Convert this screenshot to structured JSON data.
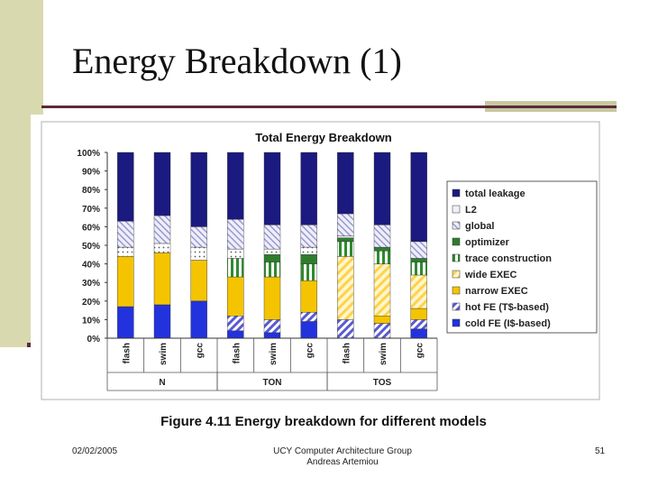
{
  "slide": {
    "title": "Energy Breakdown (1)",
    "footer_date": "02/02/2005",
    "footer_org": "UCY Computer Architecture Group",
    "footer_author": "Andreas Artemiou",
    "page_number": "51",
    "caption": "Figure 4.11 Energy breakdown for different models"
  },
  "colors": {
    "title_rule": "#5c2a3a",
    "left_strip": "#d9d9b0",
    "total_leakage": "#1a1a80",
    "l2": "#f0f0f8",
    "global": "#c8c8e8",
    "optimizer": "#2e7d2e",
    "trace_construction": "#2e8b2e",
    "wide_exec": "#ffd24a",
    "narrow_exec": "#f5c400",
    "hot_fe": "#5a5ad0",
    "cold_fe": "#2233dd"
  },
  "chart_data": {
    "type": "bar",
    "stacked": true,
    "title": "Total Energy Breakdown",
    "categories": [
      "flash",
      "swim",
      "gcc",
      "flash",
      "swim",
      "gcc",
      "flash",
      "swim",
      "gcc"
    ],
    "groups": [
      {
        "name": "N",
        "members": [
          0,
          1,
          2
        ]
      },
      {
        "name": "TON",
        "members": [
          3,
          4,
          5
        ]
      },
      {
        "name": "TOS",
        "members": [
          6,
          7,
          8
        ]
      }
    ],
    "ylim": [
      0,
      100
    ],
    "yticks": [
      "0%",
      "10%",
      "20%",
      "30%",
      "40%",
      "50%",
      "60%",
      "70%",
      "80%",
      "90%",
      "100%"
    ],
    "grid": false,
    "legend_position": "right",
    "series": [
      {
        "name": "cold FE (I$-based)",
        "key": "cold_fe",
        "pattern": "solid",
        "values": [
          17,
          18,
          20,
          4,
          3,
          9,
          0,
          0,
          5
        ]
      },
      {
        "name": "hot FE (T$-based)",
        "key": "hot_fe",
        "pattern": "hatch",
        "values": [
          0,
          0,
          0,
          8,
          7,
          5,
          10,
          8,
          5
        ]
      },
      {
        "name": "narrow EXEC",
        "key": "narrow_exec",
        "pattern": "solid",
        "values": [
          27,
          28,
          22,
          21,
          23,
          17,
          0,
          4,
          6
        ]
      },
      {
        "name": "wide EXEC",
        "key": "wide_exec",
        "pattern": "hatch",
        "values": [
          0,
          0,
          0,
          0,
          0,
          0,
          34,
          28,
          18
        ]
      },
      {
        "name": "trace construction",
        "key": "trace_construction",
        "pattern": "stripe",
        "values": [
          0,
          0,
          0,
          10,
          8,
          9,
          8,
          7,
          7
        ]
      },
      {
        "name": "optimizer",
        "key": "optimizer",
        "pattern": "solid",
        "values": [
          0,
          0,
          0,
          0,
          4,
          5,
          2,
          2,
          2
        ]
      },
      {
        "name": "global",
        "key": "global",
        "pattern": "dots",
        "values": [
          5,
          5,
          7,
          5,
          3,
          4,
          0,
          0,
          0
        ]
      },
      {
        "name": "L2",
        "key": "l2",
        "pattern": "solid",
        "values": [
          0,
          0,
          0,
          0,
          0,
          0,
          1,
          0,
          0
        ]
      },
      {
        "name": "global",
        "key": "global",
        "pattern": "hatch-light",
        "values": [
          14,
          15,
          11,
          16,
          13,
          12,
          12,
          12,
          9
        ]
      },
      {
        "name": "total leakage",
        "key": "total_leakage",
        "pattern": "solid",
        "values": [
          37,
          34,
          40,
          36,
          39,
          39,
          33,
          39,
          48
        ]
      }
    ],
    "legend": [
      {
        "name": "total leakage",
        "key": "total_leakage",
        "pattern": "solid"
      },
      {
        "name": "L2",
        "key": "l2",
        "pattern": "solid"
      },
      {
        "name": "global",
        "key": "global",
        "pattern": "hatch-light"
      },
      {
        "name": "optimizer",
        "key": "optimizer",
        "pattern": "solid"
      },
      {
        "name": "trace construction",
        "key": "trace_construction",
        "pattern": "stripe"
      },
      {
        "name": "wide EXEC",
        "key": "wide_exec",
        "pattern": "hatch"
      },
      {
        "name": "narrow EXEC",
        "key": "narrow_exec",
        "pattern": "solid"
      },
      {
        "name": "hot FE (T$-based)",
        "key": "hot_fe",
        "pattern": "hatch"
      },
      {
        "name": "cold FE (I$-based)",
        "key": "cold_fe",
        "pattern": "solid"
      }
    ]
  }
}
